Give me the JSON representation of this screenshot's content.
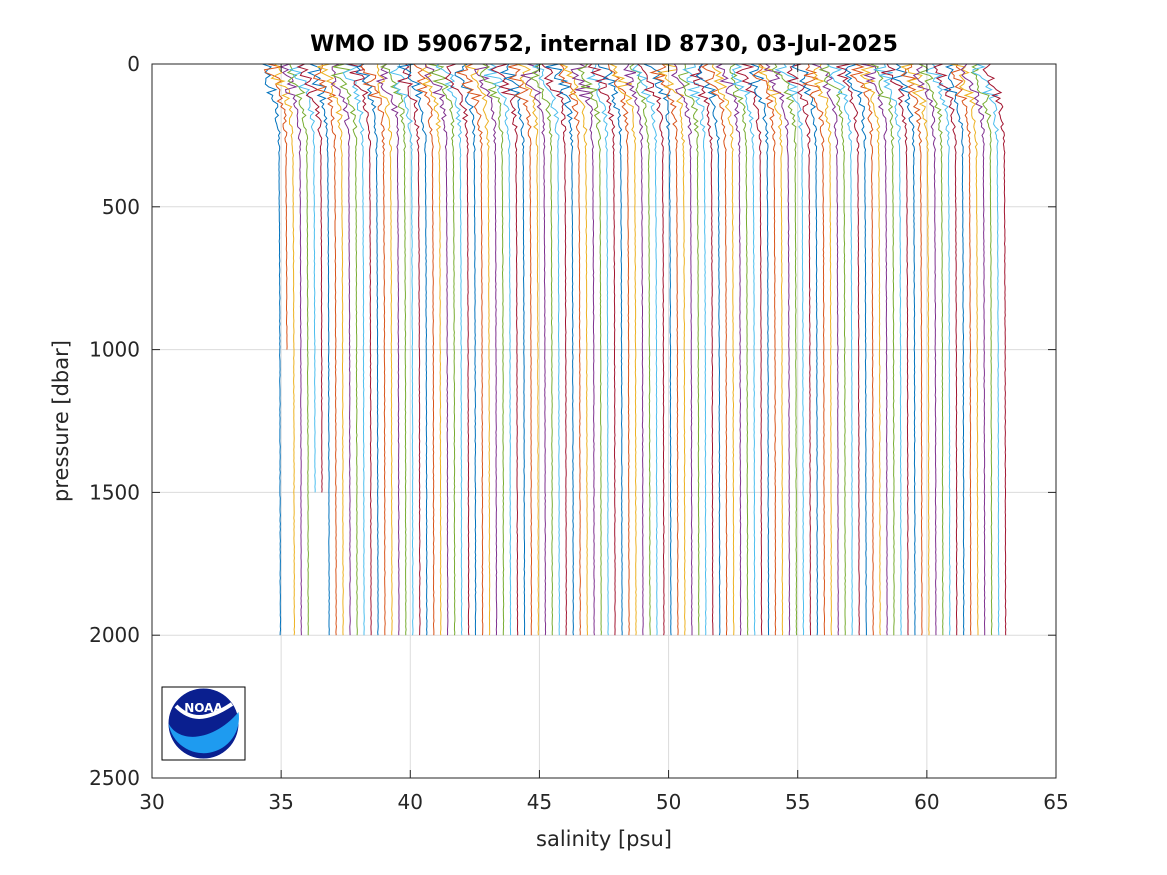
{
  "chart_data": {
    "type": "line",
    "title": "WMO ID 5906752, internal ID 8730, 03-Jul-2025",
    "xlabel": "salinity [psu]",
    "ylabel": "pressure [dbar]",
    "xlim": [
      30,
      65
    ],
    "ylim": [
      0,
      2500
    ],
    "y_reversed": true,
    "xticks": [
      30,
      35,
      40,
      45,
      50,
      55,
      60,
      65
    ],
    "yticks": [
      0,
      500,
      1000,
      1500,
      2000,
      2500
    ],
    "grid": true,
    "legend": "none",
    "profile_count": 105,
    "profile_offset_psu": 0.27,
    "base_profile": {
      "pressure": [
        0,
        40,
        80,
        120,
        160,
        200,
        250,
        300,
        400,
        500,
        700,
        1000,
        1500,
        2000
      ],
      "salinity": [
        34.3,
        34.35,
        34.5,
        34.7,
        34.8,
        34.85,
        34.9,
        34.92,
        34.92,
        34.93,
        34.94,
        34.95,
        34.96,
        34.97
      ]
    },
    "short_profiles": [
      {
        "index": 1,
        "max_pressure": 1000
      },
      {
        "index": 5,
        "max_pressure": 1500
      },
      {
        "index": 6,
        "max_pressure": 1500
      }
    ],
    "series_colors": [
      "#0072BD",
      "#D95319",
      "#EDB120",
      "#7E2F8E",
      "#77AC30",
      "#4DBEEE",
      "#A2142F"
    ]
  },
  "logo": {
    "text": "NOAA",
    "colors": {
      "dark": "#0A1F8F",
      "light": "#1E9BF0"
    }
  }
}
